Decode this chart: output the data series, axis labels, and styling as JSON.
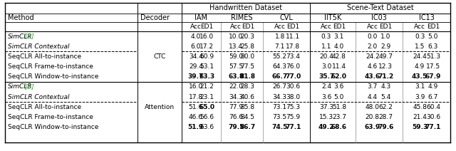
{
  "title_handwritten": "Handwritten Dataset",
  "title_scene": "Scene-Text Dataset",
  "rows_ctc": [
    [
      "SimCLR [9]",
      "",
      "4.0",
      "16.0",
      "10.0",
      "20.3",
      "1.8",
      "11.1",
      "0.3",
      "3.1",
      "0.0",
      "1.0",
      "0.3",
      "5.0"
    ],
    [
      "SimCLR Contextual",
      "",
      "6.0",
      "17.2",
      "13.4",
      "25.8",
      "7.1",
      "17.8",
      "1.1",
      "4.0",
      "2.0",
      "2.9",
      "1.5",
      "6.3"
    ],
    [
      "SeqCLR All-to-instance",
      "CTC",
      "34.4",
      "60.9",
      "59.0",
      "80.0",
      "55.2",
      "73.4",
      "20.4",
      "42.8",
      "24.2",
      "49.7",
      "24.4",
      "51.3"
    ],
    [
      "SeqCLR Frame-to-instance",
      "",
      "29.4",
      "53.1",
      "57.5",
      "77.5",
      "64.3",
      "76.0",
      "3.0",
      "11.4",
      "4.6",
      "12.3",
      "4.9",
      "17.5"
    ],
    [
      "SeqCLR Window-to-instance",
      "",
      "39.7",
      "63.3",
      "63.8",
      "81.8",
      "66.7",
      "77.0",
      "35.7",
      "62.0",
      "43.6",
      "71.2",
      "43.5",
      "67.9"
    ]
  ],
  "rows_ctc_bold": [
    [
      false,
      false,
      false,
      false,
      false,
      false,
      false,
      false,
      false,
      false,
      false,
      false,
      false,
      false
    ],
    [
      false,
      false,
      false,
      false,
      false,
      false,
      false,
      false,
      false,
      false,
      false,
      false,
      false,
      false
    ],
    [
      false,
      false,
      false,
      false,
      false,
      false,
      false,
      false,
      false,
      false,
      false,
      false,
      false,
      false
    ],
    [
      false,
      false,
      false,
      false,
      false,
      false,
      false,
      false,
      false,
      false,
      false,
      false,
      false,
      false
    ],
    [
      false,
      false,
      true,
      true,
      true,
      true,
      true,
      true,
      true,
      true,
      true,
      true,
      true,
      true
    ]
  ],
  "rows_att": [
    [
      "SimCLR [9]",
      "",
      "16.0",
      "21.2",
      "22.0",
      "28.3",
      "26.7",
      "30.6",
      "2.4",
      "3.6",
      "3.7",
      "4.3",
      "3.1",
      "4.9"
    ],
    [
      "SimCLR Contextual",
      "",
      "17.8",
      "23.1",
      "34.3",
      "40.6",
      "34.3",
      "38.0",
      "3.6",
      "5.0",
      "4.4",
      "5.4",
      "3.9",
      "6.7"
    ],
    [
      "SeqCLR All-to-instance",
      "Attention",
      "51.6",
      "65.0",
      "77.9",
      "85.8",
      "73.1",
      "75.3",
      "37.3",
      "51.8",
      "48.0",
      "62.2",
      "45.8",
      "60.4"
    ],
    [
      "SeqCLR Frame-to-instance",
      "",
      "46.6",
      "56.6",
      "76.6",
      "84.5",
      "73.5",
      "75.9",
      "15.3",
      "23.7",
      "20.8",
      "28.7",
      "21.4",
      "30.6"
    ],
    [
      "SeqCLR Window-to-instance",
      "",
      "51.9",
      "63.6",
      "79.5",
      "86.7",
      "74.5",
      "77.1",
      "49.2",
      "68.6",
      "63.9",
      "79.6",
      "59.3",
      "77.1"
    ]
  ],
  "rows_att_bold": [
    [
      false,
      false,
      false,
      false,
      false,
      false,
      false,
      false,
      false,
      false,
      false,
      false,
      false,
      false
    ],
    [
      false,
      false,
      false,
      false,
      false,
      false,
      false,
      false,
      false,
      false,
      false,
      false,
      false,
      false
    ],
    [
      false,
      false,
      false,
      true,
      false,
      false,
      false,
      false,
      false,
      false,
      false,
      false,
      false,
      false
    ],
    [
      false,
      false,
      false,
      false,
      false,
      false,
      false,
      false,
      false,
      false,
      false,
      false,
      false,
      false
    ],
    [
      false,
      false,
      true,
      false,
      true,
      true,
      true,
      true,
      true,
      true,
      true,
      true,
      true,
      true
    ]
  ],
  "italic_rows_ctc": [
    0,
    1
  ],
  "italic_rows_att": [
    0,
    1
  ],
  "simclr_color": "#22AA22",
  "background_color": "#ffffff",
  "col_sep_color": "#555555",
  "line_color": "#000000"
}
